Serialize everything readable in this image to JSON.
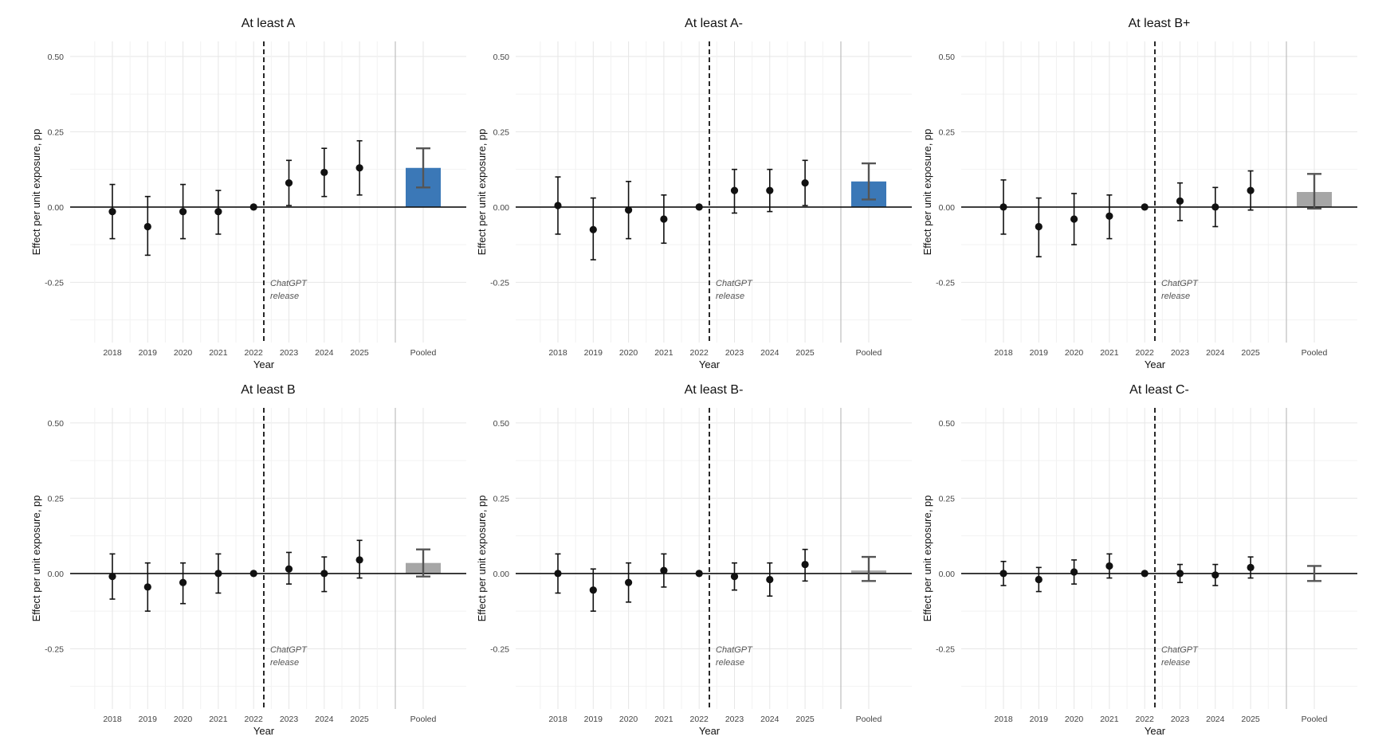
{
  "chart_data": [
    {
      "type": "scatter",
      "title": "At least A",
      "xlabel": "Year",
      "ylabel": "Effect per unit exposure, pp",
      "x": [
        "2018",
        "2019",
        "2020",
        "2021",
        "2022",
        "2023",
        "2024",
        "2025"
      ],
      "y": [
        -0.015,
        -0.065,
        -0.015,
        -0.015,
        0.0,
        0.08,
        0.115,
        0.13
      ],
      "ci_low": [
        -0.105,
        -0.16,
        -0.105,
        -0.09,
        0.0,
        0.005,
        0.035,
        0.04
      ],
      "ci_high": [
        0.075,
        0.035,
        0.075,
        0.055,
        0.0,
        0.155,
        0.195,
        0.22
      ],
      "pooled": {
        "label": "Pooled",
        "value": 0.13,
        "ci_low": 0.065,
        "ci_high": 0.195,
        "color": "#3b78b7"
      },
      "annotation": [
        "ChatGPT",
        "release"
      ],
      "yticks": [
        "0.50",
        "0.25",
        "0.00",
        "-0.25"
      ],
      "ylim": [
        -0.45,
        0.55
      ],
      "grid": true
    },
    {
      "type": "scatter",
      "title": "At least A-",
      "xlabel": "Year",
      "ylabel": "Effect per unit exposure, pp",
      "x": [
        "2018",
        "2019",
        "2020",
        "2021",
        "2022",
        "2023",
        "2024",
        "2025"
      ],
      "y": [
        0.005,
        -0.075,
        -0.01,
        -0.04,
        0.0,
        0.055,
        0.055,
        0.08
      ],
      "ci_low": [
        -0.09,
        -0.175,
        -0.105,
        -0.12,
        0.0,
        -0.02,
        -0.015,
        0.005
      ],
      "ci_high": [
        0.1,
        0.03,
        0.085,
        0.04,
        0.0,
        0.125,
        0.125,
        0.155
      ],
      "pooled": {
        "label": "Pooled",
        "value": 0.085,
        "ci_low": 0.025,
        "ci_high": 0.145,
        "color": "#3b78b7"
      },
      "annotation": [
        "ChatGPT",
        "release"
      ],
      "yticks": [
        "0.50",
        "0.25",
        "0.00",
        "-0.25"
      ],
      "ylim": [
        -0.45,
        0.55
      ],
      "grid": true
    },
    {
      "type": "scatter",
      "title": "At least B+",
      "xlabel": "Year",
      "ylabel": "Effect per unit exposure, pp",
      "x": [
        "2018",
        "2019",
        "2020",
        "2021",
        "2022",
        "2023",
        "2024",
        "2025"
      ],
      "y": [
        0.0,
        -0.065,
        -0.04,
        -0.03,
        0.0,
        0.02,
        0.0,
        0.055
      ],
      "ci_low": [
        -0.09,
        -0.165,
        -0.125,
        -0.105,
        0.0,
        -0.045,
        -0.065,
        -0.01
      ],
      "ci_high": [
        0.09,
        0.03,
        0.045,
        0.04,
        0.0,
        0.08,
        0.065,
        0.12
      ],
      "pooled": {
        "label": "Pooled",
        "value": 0.05,
        "ci_low": -0.005,
        "ci_high": 0.11,
        "color": "#a6a6a6"
      },
      "annotation": [
        "ChatGPT",
        "release"
      ],
      "yticks": [
        "0.50",
        "0.25",
        "0.00",
        "-0.25"
      ],
      "ylim": [
        -0.45,
        0.55
      ],
      "grid": true
    },
    {
      "type": "scatter",
      "title": "At least B",
      "xlabel": "Year",
      "ylabel": "Effect per unit exposure, pp",
      "x": [
        "2018",
        "2019",
        "2020",
        "2021",
        "2022",
        "2023",
        "2024",
        "2025"
      ],
      "y": [
        -0.01,
        -0.045,
        -0.03,
        0.0,
        0.0,
        0.015,
        0.0,
        0.045
      ],
      "ci_low": [
        -0.085,
        -0.125,
        -0.1,
        -0.065,
        0.0,
        -0.035,
        -0.06,
        -0.015
      ],
      "ci_high": [
        0.065,
        0.035,
        0.035,
        0.065,
        0.0,
        0.07,
        0.055,
        0.11
      ],
      "pooled": {
        "label": "Pooled",
        "value": 0.035,
        "ci_low": -0.01,
        "ci_high": 0.08,
        "color": "#a6a6a6"
      },
      "annotation": [
        "ChatGPT",
        "release"
      ],
      "yticks": [
        "0.50",
        "0.25",
        "0.00",
        "-0.25"
      ],
      "ylim": [
        -0.45,
        0.55
      ],
      "grid": true
    },
    {
      "type": "scatter",
      "title": "At least B-",
      "xlabel": "Year",
      "ylabel": "Effect per unit exposure, pp",
      "x": [
        "2018",
        "2019",
        "2020",
        "2021",
        "2022",
        "2023",
        "2024",
        "2025"
      ],
      "y": [
        0.0,
        -0.055,
        -0.03,
        0.01,
        0.0,
        -0.01,
        -0.02,
        0.03
      ],
      "ci_low": [
        -0.065,
        -0.125,
        -0.095,
        -0.045,
        0.0,
        -0.055,
        -0.075,
        -0.025
      ],
      "ci_high": [
        0.065,
        0.015,
        0.035,
        0.065,
        0.0,
        0.035,
        0.035,
        0.08
      ],
      "pooled": {
        "label": "Pooled",
        "value": 0.01,
        "ci_low": -0.025,
        "ci_high": 0.055,
        "color": "#a6a6a6"
      },
      "annotation": [
        "ChatGPT",
        "release"
      ],
      "yticks": [
        "0.50",
        "0.25",
        "0.00",
        "-0.25"
      ],
      "ylim": [
        -0.45,
        0.55
      ],
      "grid": true
    },
    {
      "type": "scatter",
      "title": "At least C-",
      "xlabel": "Year",
      "ylabel": "Effect per unit exposure, pp",
      "x": [
        "2018",
        "2019",
        "2020",
        "2021",
        "2022",
        "2023",
        "2024",
        "2025"
      ],
      "y": [
        0.0,
        -0.02,
        0.005,
        0.025,
        0.0,
        0.0,
        -0.005,
        0.02
      ],
      "ci_low": [
        -0.04,
        -0.06,
        -0.035,
        -0.015,
        0.0,
        -0.03,
        -0.04,
        -0.015
      ],
      "ci_high": [
        0.04,
        0.02,
        0.045,
        0.065,
        0.0,
        0.03,
        0.03,
        0.055
      ],
      "pooled": {
        "label": "Pooled",
        "value": 0.0,
        "ci_low": -0.025,
        "ci_high": 0.025,
        "color": "#a6a6a6"
      },
      "annotation": [
        "ChatGPT",
        "release"
      ],
      "yticks": [
        "0.50",
        "0.25",
        "0.00",
        "-0.25"
      ],
      "ylim": [
        -0.45,
        0.55
      ],
      "grid": true
    }
  ]
}
